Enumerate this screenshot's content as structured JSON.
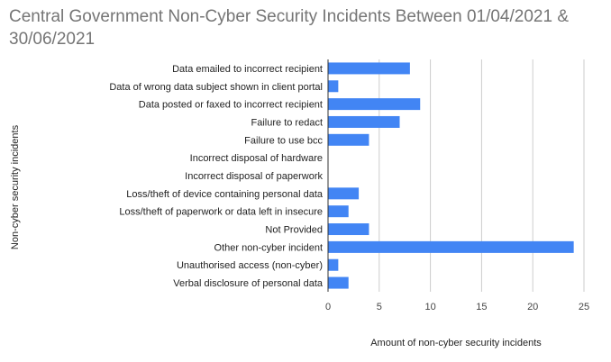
{
  "chart_data": {
    "type": "bar",
    "orientation": "horizontal",
    "title": "Central Government Non-Cyber Security Incidents Between 01/04/2021 & 30/06/2021",
    "xlabel": "Amount of non-cyber security incidents",
    "ylabel": "Non-cyber security incidents",
    "categories": [
      "Data emailed to incorrect recipient",
      "Data of wrong data subject shown in client portal",
      "Data posted or faxed to incorrect recipient",
      "Failure to redact",
      "Failure to use bcc",
      "Incorrect disposal of hardware",
      "Incorrect disposal of paperwork",
      "Loss/theft of device containing personal data",
      "Loss/theft of paperwork or data left in insecure",
      "Not Provided",
      "Other non-cyber incident",
      "Unauthorised access (non-cyber)",
      "Verbal disclosure of personal data"
    ],
    "values": [
      8,
      1,
      9,
      7,
      4,
      0,
      0,
      3,
      2,
      4,
      24,
      1,
      2
    ],
    "xlim": [
      0,
      25
    ],
    "xticks": [
      0,
      5,
      10,
      15,
      20,
      25
    ],
    "grid": "vertical",
    "legend": "none",
    "bar_color": "#4285f4"
  }
}
